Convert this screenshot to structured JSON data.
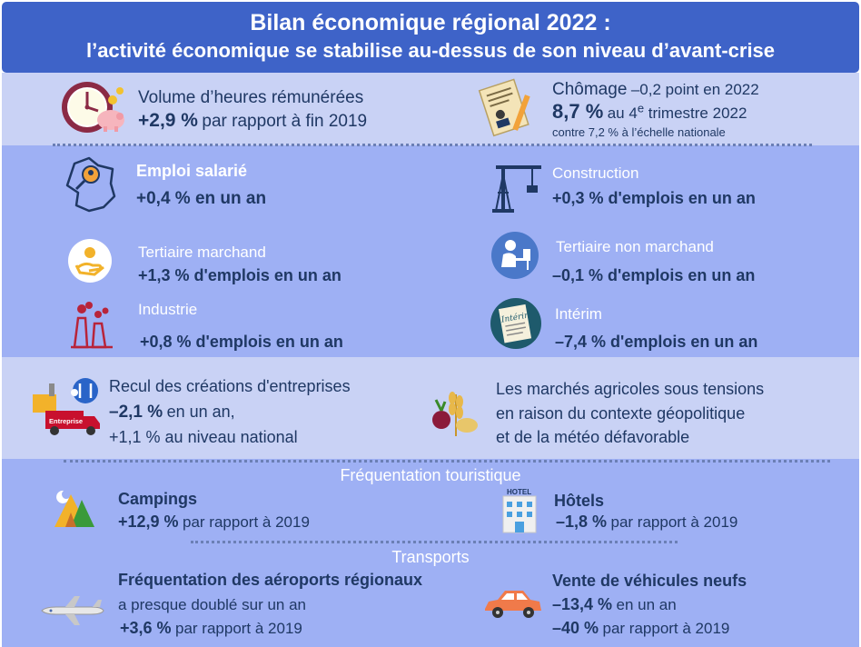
{
  "header": {
    "title_line1": "Bilan économique régional 2022 :",
    "title_line2": "l’activité économique se stabilise au-dessus de son niveau d’avant-crise"
  },
  "heures": {
    "label": "Volume d’heures rémunérées",
    "value": "+2,9 %",
    "suffix": "par rapport à fin 2019"
  },
  "chomage": {
    "label": "Chômage",
    "change": "–0,2 point en 2022",
    "value": "8,7 %",
    "suffix_pre": "au 4",
    "suffix_sup": "e",
    "suffix_post": " trimestre 2022",
    "national": "contre 7,2 % à l’échelle nationale"
  },
  "emploi": {
    "label": "Emploi salarié",
    "value": "+0,4 % en un an"
  },
  "construction": {
    "label": "Construction",
    "value": "+0,3 % d'emplois en un an"
  },
  "tertiaire_marchand": {
    "label": "Tertiaire marchand",
    "value": "+1,3 % d'emplois en un an"
  },
  "tertiaire_non_marchand": {
    "label": "Tertiaire non marchand",
    "value": "–0,1 % d'emplois en un an"
  },
  "industrie": {
    "label": "Industrie",
    "value": "+0,8 % d'emplois en un an"
  },
  "interim": {
    "label": "Intérim",
    "value": "–7,4 % d'emplois en un an",
    "icon_text": "Intérim"
  },
  "creations": {
    "label": "Recul des créations d'entreprises",
    "value": "–2,1 %",
    "suffix": "en un an,",
    "national": "+1,1 % au niveau national",
    "icon_text": "Entreprise"
  },
  "agricole": {
    "line1": "Les marchés agricoles sous tensions",
    "line2": "en raison du contexte géopolitique",
    "line3": "et de la météo défavorable"
  },
  "tourisme": {
    "section": "Fréquentation touristique",
    "campings_label": "Campings",
    "campings_value": "+12,9 %",
    "campings_suffix": "par rapport à 2019",
    "hotels_label": "Hôtels",
    "hotels_value": "–1,8 %",
    "hotels_suffix": "par rapport à 2019",
    "hotel_sign": "HOTEL"
  },
  "transports": {
    "section": "Transports",
    "aeroports_label": "Fréquentation des aéroports régionaux",
    "aeroports_line": "a presque doublé sur un an",
    "aeroports_value": "+3,6 %",
    "aeroports_suffix": "par rapport à 2019",
    "vehicules_label": "Vente de véhicules neufs",
    "vehicules_value1": "–13,4 %",
    "vehicules_suffix1": "en un an",
    "vehicules_value2": "–40 %",
    "vehicules_suffix2": "par rapport à 2019"
  },
  "colors": {
    "header": "#3e63c8",
    "band_light": "#c9d2f5",
    "band_mid": "#9eb0f4",
    "text_dark": "#1f3864"
  }
}
